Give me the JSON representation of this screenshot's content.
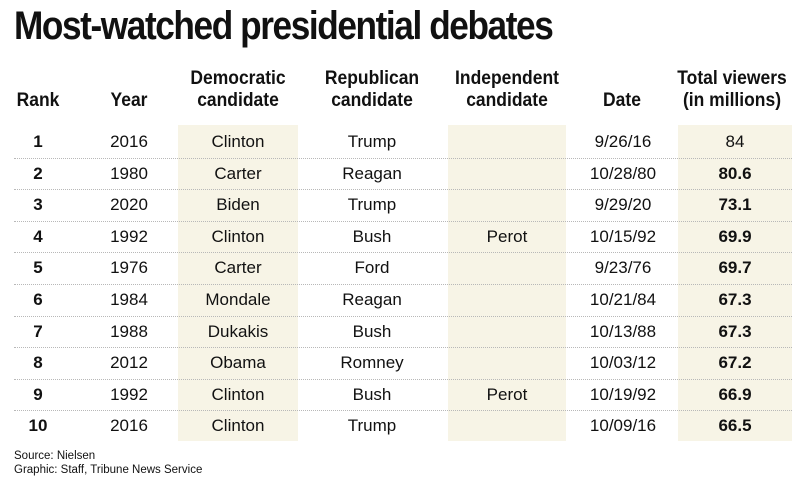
{
  "title": "Most-watched presidential debates",
  "headers": {
    "rank": [
      "Rank"
    ],
    "year": [
      "Year"
    ],
    "dem": [
      "Democratic",
      "candidate"
    ],
    "rep": [
      "Republican",
      "candidate"
    ],
    "ind": [
      "Independent",
      "candidate"
    ],
    "date": [
      "Date"
    ],
    "viewers": [
      "Total viewers",
      "(in millions)"
    ]
  },
  "chart_data": {
    "type": "table",
    "title": "Most-watched presidential debates",
    "columns": [
      "Rank",
      "Year",
      "Democratic candidate",
      "Republican candidate",
      "Independent candidate",
      "Date",
      "Total viewers (in millions)"
    ],
    "rows": [
      {
        "rank": "1",
        "year": "2016",
        "dem": "Clinton",
        "rep": "Trump",
        "ind": "",
        "date": "9/26/16",
        "viewers": "84",
        "bold": false
      },
      {
        "rank": "2",
        "year": "1980",
        "dem": "Carter",
        "rep": "Reagan",
        "ind": "",
        "date": "10/28/80",
        "viewers": "80.6",
        "bold": true
      },
      {
        "rank": "3",
        "year": "2020",
        "dem": "Biden",
        "rep": "Trump",
        "ind": "",
        "date": "9/29/20",
        "viewers": "73.1",
        "bold": true
      },
      {
        "rank": "4",
        "year": "1992",
        "dem": "Clinton",
        "rep": "Bush",
        "ind": "Perot",
        "date": "10/15/92",
        "viewers": "69.9",
        "bold": true
      },
      {
        "rank": "5",
        "year": "1976",
        "dem": "Carter",
        "rep": "Ford",
        "ind": "",
        "date": "9/23/76",
        "viewers": "69.7",
        "bold": true
      },
      {
        "rank": "6",
        "year": "1984",
        "dem": "Mondale",
        "rep": "Reagan",
        "ind": "",
        "date": "10/21/84",
        "viewers": "67.3",
        "bold": true
      },
      {
        "rank": "7",
        "year": "1988",
        "dem": "Dukakis",
        "rep": "Bush",
        "ind": "",
        "date": "10/13/88",
        "viewers": "67.3",
        "bold": true
      },
      {
        "rank": "8",
        "year": "2012",
        "dem": "Obama",
        "rep": "Romney",
        "ind": "",
        "date": "10/03/12",
        "viewers": "67.2",
        "bold": true
      },
      {
        "rank": "9",
        "year": "1992",
        "dem": "Clinton",
        "rep": "Bush",
        "ind": "Perot",
        "date": "10/19/92",
        "viewers": "66.9",
        "bold": true
      },
      {
        "rank": "10",
        "year": "2016",
        "dem": "Clinton",
        "rep": "Trump",
        "ind": "",
        "date": "10/09/16",
        "viewers": "66.5",
        "bold": true
      }
    ]
  },
  "footer": {
    "source": "Source: Nielsen",
    "credit": "Graphic: Staff, Tribune News Service"
  },
  "colors": {
    "column_shading": "#f7f4e6",
    "divider": "#b8b8b8"
  }
}
